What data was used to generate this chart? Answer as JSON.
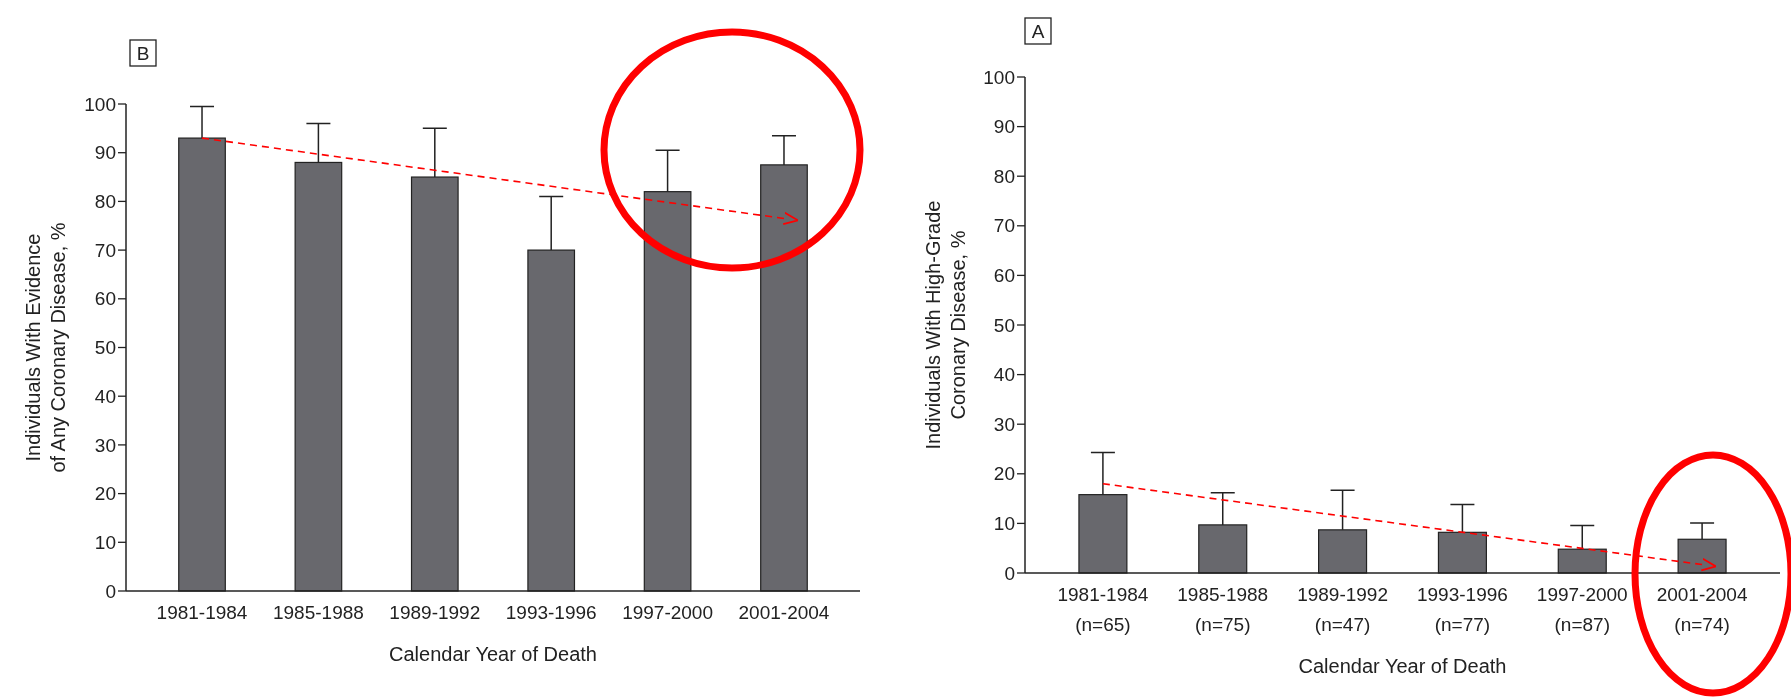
{
  "chart_data": [
    {
      "type": "bar",
      "title": "B",
      "xlabel": "Calendar Year of Death",
      "ylabel": "Individuals With Evidence\nof Any Coronary Disease, %",
      "categories": [
        "1981-1984",
        "1985-1988",
        "1989-1992",
        "1993-1996",
        "1997-2000",
        "2001-2004"
      ],
      "ylim": [
        0,
        100
      ],
      "yticks": [
        0,
        10,
        20,
        30,
        40,
        50,
        60,
        70,
        80,
        90,
        100
      ],
      "series": [
        {
          "color": "#68686d",
          "values": [
            93,
            88,
            85,
            70,
            82,
            87.5
          ],
          "errors": [
            [
              93,
              99.5
            ],
            [
              88,
              96
            ],
            [
              85,
              95
            ],
            [
              70,
              81
            ],
            [
              82,
              90.5
            ],
            [
              87.5,
              93.5
            ]
          ]
        },
        {
          "type": "line",
          "color": "#ff0000",
          "line_style": "dashed",
          "x": [
            "1981-1984",
            "2001-2004"
          ],
          "values": [
            93,
            76.5
          ]
        }
      ]
    },
    {
      "type": "bar",
      "title": "A",
      "xlabel": "Calendar Year of Death",
      "ylabel": "Individuals With High-Grade\nCoronary Disease, %",
      "categories": [
        "1981-1984\n(n=65)",
        "1985-1988\n(n=75)",
        "1989-1992\n(n=47)",
        "1993-1996\n(n=77)",
        "1997-2000\n(n=87)",
        "2001-2004\n(n=74)"
      ],
      "ylim": [
        0,
        100
      ],
      "yticks": [
        0,
        10,
        20,
        30,
        40,
        50,
        60,
        70,
        80,
        90,
        100
      ],
      "series": [
        {
          "color": "#68686d",
          "values": [
            15.8,
            9.7,
            8.7,
            8.2,
            4.8,
            6.8
          ],
          "errors": [
            [
              15.8,
              24.3
            ],
            [
              9.7,
              16.2
            ],
            [
              8.7,
              16.7
            ],
            [
              8.2,
              13.8
            ],
            [
              4.8,
              9.6
            ],
            [
              6.8,
              10.1
            ]
          ]
        },
        {
          "type": "line",
          "color": "#ff0000",
          "line_style": "dashed",
          "x": [
            "1981-1984\n(n=65)",
            "2001-2004\n(n=74)"
          ],
          "values": [
            18,
            1.7
          ]
        }
      ]
    }
  ]
}
